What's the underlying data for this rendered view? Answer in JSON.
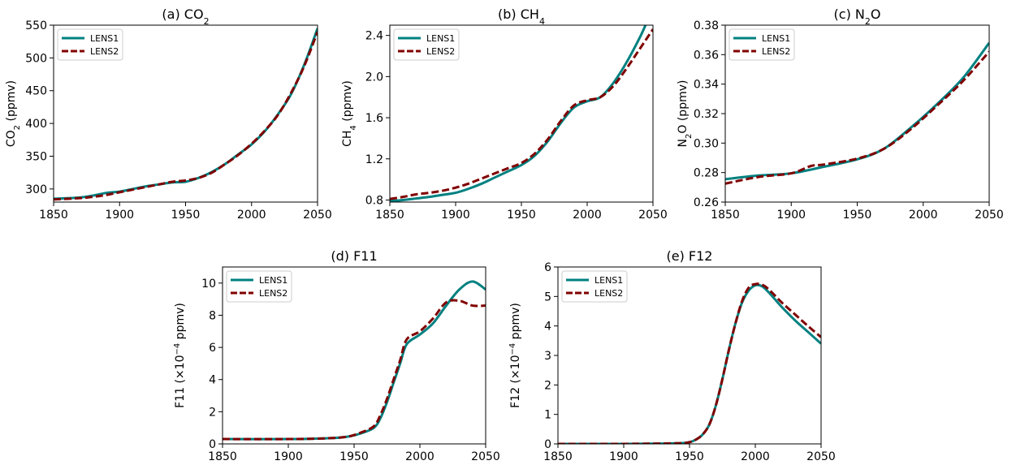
{
  "colors": {
    "lens1": "#008080",
    "lens2": "#800000"
  },
  "chart_data": [
    {
      "id": "a",
      "type": "line",
      "title_pre": "(a) CO",
      "title_sub": "2",
      "title_post": "",
      "ylabel_pre": "CO",
      "ylabel_sub": "2",
      "ylabel_post": " (ppmv)",
      "xlim": [
        1850,
        2050
      ],
      "ylim": [
        280,
        550
      ],
      "xticks": [
        1850,
        1900,
        1950,
        2000,
        2050
      ],
      "yticks": [
        300,
        350,
        400,
        450,
        500,
        550
      ],
      "yticklabels": [
        "300",
        "350",
        "400",
        "450",
        "500",
        "550"
      ],
      "grid": false,
      "legend_position": "top-left",
      "series": [
        {
          "name": "LENS1",
          "style": "solid",
          "x": [
            1850,
            1870,
            1880,
            1890,
            1900,
            1910,
            1920,
            1930,
            1940,
            1950,
            1960,
            1970,
            1980,
            1990,
            2000,
            2010,
            2020,
            2030,
            2040,
            2050
          ],
          "y": [
            285,
            287,
            290,
            294,
            296,
            300,
            304,
            307,
            310,
            311,
            317,
            326,
            338,
            353,
            368,
            388,
            414,
            445,
            490,
            545
          ]
        },
        {
          "name": "LENS2",
          "style": "dashed",
          "x": [
            1850,
            1870,
            1880,
            1890,
            1900,
            1910,
            1920,
            1930,
            1940,
            1950,
            1960,
            1970,
            1980,
            1990,
            2000,
            2010,
            2020,
            2030,
            2040,
            2050
          ],
          "y": [
            284,
            286,
            288,
            291,
            295,
            299,
            303,
            307,
            311,
            313,
            317,
            325,
            338,
            352,
            369,
            389,
            413,
            447,
            488,
            540
          ]
        }
      ]
    },
    {
      "id": "b",
      "type": "line",
      "title_pre": "(b) CH",
      "title_sub": "4",
      "title_post": "",
      "ylabel_pre": "CH",
      "ylabel_sub": "4",
      "ylabel_post": " (ppmv)",
      "xlim": [
        1850,
        2050
      ],
      "ylim": [
        0.78,
        2.5
      ],
      "xticks": [
        1850,
        1900,
        1950,
        2000,
        2050
      ],
      "yticks": [
        0.8,
        1.2,
        1.6,
        2.0,
        2.4
      ],
      "yticklabels": [
        "0.8",
        "1.2",
        "1.6",
        "2.0",
        "2.4"
      ],
      "grid": false,
      "legend_position": "top-left",
      "series": [
        {
          "name": "LENS1",
          "style": "solid",
          "x": [
            1850,
            1860,
            1870,
            1880,
            1890,
            1900,
            1910,
            1920,
            1930,
            1940,
            1950,
            1960,
            1970,
            1980,
            1990,
            2000,
            2010,
            2020,
            2030,
            2040,
            2045
          ],
          "y": [
            0.79,
            0.8,
            0.815,
            0.83,
            0.85,
            0.87,
            0.91,
            0.96,
            1.02,
            1.08,
            1.14,
            1.23,
            1.37,
            1.55,
            1.7,
            1.76,
            1.8,
            1.94,
            2.14,
            2.38,
            2.52
          ]
        },
        {
          "name": "LENS2",
          "style": "dashed",
          "x": [
            1850,
            1860,
            1870,
            1880,
            1890,
            1900,
            1910,
            1920,
            1930,
            1940,
            1950,
            1960,
            1970,
            1980,
            1990,
            2000,
            2010,
            2020,
            2030,
            2040,
            2050
          ],
          "y": [
            0.81,
            0.83,
            0.855,
            0.87,
            0.89,
            0.92,
            0.96,
            1.01,
            1.06,
            1.11,
            1.16,
            1.25,
            1.39,
            1.57,
            1.72,
            1.77,
            1.8,
            1.91,
            2.08,
            2.27,
            2.46
          ]
        }
      ]
    },
    {
      "id": "c",
      "type": "line",
      "title_pre": "(c) N",
      "title_sub": "2",
      "title_post": "O",
      "ylabel_pre": "N",
      "ylabel_sub": "2",
      "ylabel_post": "O (ppmv)",
      "xlim": [
        1850,
        2050
      ],
      "ylim": [
        0.26,
        0.38
      ],
      "xticks": [
        1850,
        1900,
        1950,
        2000,
        2050
      ],
      "yticks": [
        0.26,
        0.28,
        0.3,
        0.32,
        0.34,
        0.36,
        0.38
      ],
      "yticklabels": [
        "0.26",
        "0.28",
        "0.30",
        "0.32",
        "0.34",
        "0.36",
        "0.38"
      ],
      "grid": false,
      "legend_position": "top-left",
      "series": [
        {
          "name": "LENS1",
          "style": "solid",
          "x": [
            1850,
            1875,
            1900,
            1925,
            1950,
            1970,
            1990,
            2010,
            2030,
            2050
          ],
          "y": [
            0.2755,
            0.278,
            0.2795,
            0.284,
            0.289,
            0.296,
            0.31,
            0.326,
            0.344,
            0.368
          ]
        },
        {
          "name": "LENS2",
          "style": "dashed",
          "x": [
            1850,
            1875,
            1900,
            1915,
            1925,
            1950,
            1970,
            1990,
            2010,
            2030,
            2050
          ],
          "y": [
            0.2725,
            0.277,
            0.2795,
            0.2845,
            0.2855,
            0.2895,
            0.296,
            0.309,
            0.325,
            0.342,
            0.362
          ]
        }
      ]
    },
    {
      "id": "d",
      "type": "line",
      "title_pre": "(d) F11",
      "title_sub": "",
      "title_post": "",
      "ylabel_pre": "F11 (×10",
      "ylabel_sup": "−4",
      "ylabel_post": " ppmv)",
      "xlim": [
        1850,
        2050
      ],
      "ylim": [
        0,
        11
      ],
      "xticks": [
        1850,
        1900,
        1950,
        2000,
        2050
      ],
      "yticks": [
        0,
        2,
        4,
        6,
        8,
        10
      ],
      "yticklabels": [
        "0",
        "2",
        "4",
        "6",
        "8",
        "10"
      ],
      "grid": false,
      "legend_position": "top-left",
      "series": [
        {
          "name": "LENS1",
          "style": "solid",
          "x": [
            1850,
            1900,
            1930,
            1945,
            1955,
            1965,
            1970,
            1975,
            1980,
            1985,
            1990,
            2000,
            2010,
            2020,
            2030,
            2040,
            2050
          ],
          "y": [
            0.3,
            0.3,
            0.35,
            0.45,
            0.65,
            1.0,
            1.6,
            2.6,
            3.8,
            5.0,
            6.2,
            6.8,
            7.5,
            8.6,
            9.6,
            10.1,
            9.6
          ]
        },
        {
          "name": "LENS2",
          "style": "dashed",
          "x": [
            1850,
            1900,
            1930,
            1945,
            1955,
            1965,
            1970,
            1975,
            1980,
            1985,
            1990,
            2000,
            2010,
            2020,
            2030,
            2040,
            2050
          ],
          "y": [
            0.3,
            0.3,
            0.35,
            0.45,
            0.7,
            1.1,
            1.8,
            2.8,
            4.0,
            5.2,
            6.5,
            7.0,
            7.8,
            8.8,
            8.9,
            8.6,
            8.6
          ]
        }
      ]
    },
    {
      "id": "e",
      "type": "line",
      "title_pre": "(e) F12",
      "title_sub": "",
      "title_post": "",
      "ylabel_pre": "F12 (×10",
      "ylabel_sup": "−4",
      "ylabel_post": " ppmv)",
      "xlim": [
        1850,
        2050
      ],
      "ylim": [
        0,
        6
      ],
      "xticks": [
        1850,
        1900,
        1950,
        2000,
        2050
      ],
      "yticks": [
        0,
        1,
        2,
        3,
        4,
        5,
        6
      ],
      "yticklabels": [
        "0",
        "1",
        "2",
        "3",
        "4",
        "5",
        "6"
      ],
      "grid": false,
      "legend_position": "top-left",
      "series": [
        {
          "name": "LENS1",
          "style": "solid",
          "x": [
            1850,
            1900,
            1940,
            1950,
            1955,
            1960,
            1965,
            1970,
            1975,
            1980,
            1985,
            1990,
            1995,
            2000,
            2005,
            2010,
            2020,
            2030,
            2040,
            2050
          ],
          "y": [
            0,
            0,
            0.02,
            0.06,
            0.15,
            0.32,
            0.65,
            1.3,
            2.2,
            3.2,
            4.1,
            4.8,
            5.2,
            5.38,
            5.35,
            5.15,
            4.65,
            4.2,
            3.8,
            3.4
          ]
        },
        {
          "name": "LENS2",
          "style": "dashed",
          "x": [
            1850,
            1900,
            1940,
            1950,
            1955,
            1960,
            1965,
            1970,
            1975,
            1980,
            1985,
            1990,
            1995,
            2000,
            2005,
            2010,
            2020,
            2030,
            2040,
            2050
          ],
          "y": [
            0,
            0,
            0.02,
            0.06,
            0.15,
            0.32,
            0.65,
            1.3,
            2.2,
            3.2,
            4.1,
            4.85,
            5.3,
            5.42,
            5.4,
            5.25,
            4.8,
            4.4,
            4.0,
            3.62
          ]
        }
      ]
    }
  ]
}
